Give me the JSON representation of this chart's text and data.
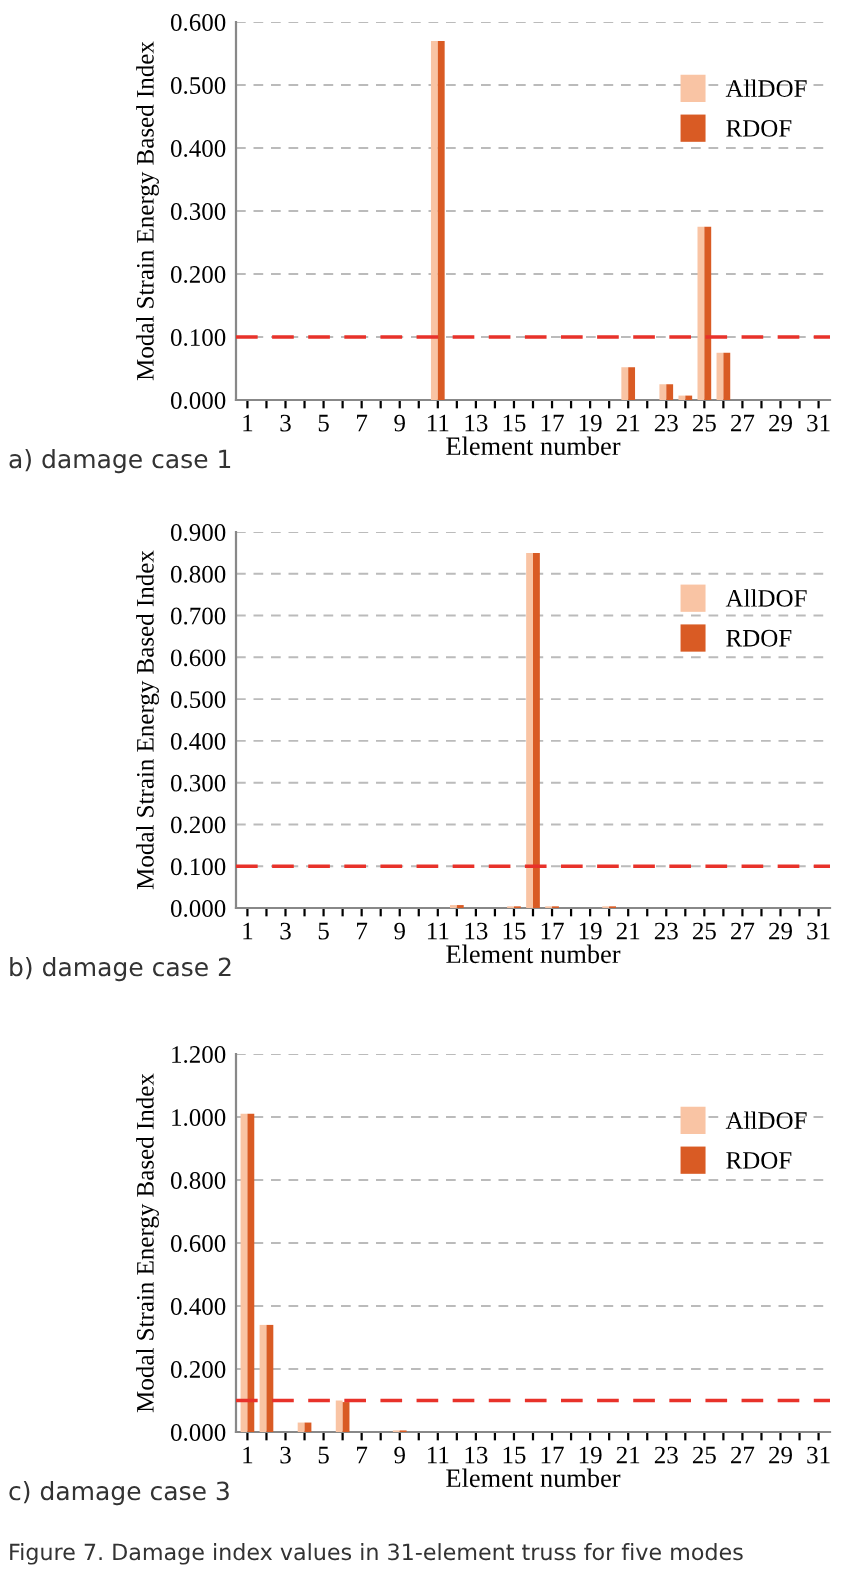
{
  "chart_data": [
    {
      "type": "bar",
      "xlabel": "Element number",
      "ylabel": "Modal Strain Energy Based Index",
      "categories": [
        "1",
        null,
        "3",
        null,
        "5",
        null,
        "7",
        null,
        "9",
        null,
        "11",
        null,
        "13",
        null,
        "15",
        null,
        "17",
        null,
        "19",
        null,
        "21",
        null,
        "23",
        null,
        "25",
        null,
        "27",
        null,
        "29",
        null,
        "31"
      ],
      "series": [
        {
          "name": "AllDOF",
          "color": "#f9c4a4",
          "values": [
            0,
            0,
            0,
            0,
            0,
            0,
            0,
            0,
            0,
            0,
            0.57,
            0,
            0,
            0,
            0,
            0,
            0,
            0,
            0,
            0,
            0.052,
            0,
            0.025,
            0.007,
            0.275,
            0.075,
            0,
            0,
            0,
            0,
            0
          ]
        },
        {
          "name": "RDOF",
          "color": "#d95b24",
          "values": [
            0,
            0,
            0,
            0,
            0,
            0,
            0,
            0,
            0,
            0,
            0.57,
            0,
            0,
            0,
            0,
            0,
            0,
            0,
            0,
            0,
            0.052,
            0,
            0.025,
            0.007,
            0.275,
            0.075,
            0,
            0,
            0,
            0,
            0
          ]
        }
      ],
      "ylim": [
        0,
        0.6
      ],
      "yticks": [
        {
          "value": 0,
          "label": "0.000"
        },
        {
          "value": 0.1,
          "label": "0.100"
        },
        {
          "value": 0.2,
          "label": "0.200"
        },
        {
          "value": 0.3,
          "label": "0.300"
        },
        {
          "value": 0.4,
          "label": "0.400"
        },
        {
          "value": 0.5,
          "label": "0.500"
        },
        {
          "value": 0.6,
          "label": "0.600"
        }
      ],
      "ref_lines": [
        {
          "axis": "y",
          "value": 0.1,
          "color": "#e8322a",
          "line_style": "dashed"
        }
      ],
      "grid": "y",
      "legend": "top right",
      "annotations": [
        "a) damage case 1"
      ]
    },
    {
      "type": "bar",
      "xlabel": "Element number",
      "ylabel": "Modal Strain Energy Based Index",
      "categories": [
        "1",
        null,
        "3",
        null,
        "5",
        null,
        "7",
        null,
        "9",
        null,
        "11",
        null,
        "13",
        null,
        "15",
        null,
        "17",
        null,
        "19",
        null,
        "21",
        null,
        "23",
        null,
        "25",
        null,
        "27",
        null,
        "29",
        null,
        "31"
      ],
      "series": [
        {
          "name": "AllDOF",
          "color": "#f9c4a4",
          "values": [
            0,
            0,
            0,
            0,
            0,
            0,
            0,
            0,
            0,
            0,
            0,
            0.007,
            0,
            0,
            0.004,
            0.85,
            0.004,
            0,
            0,
            0.004,
            0,
            0,
            0,
            0,
            0,
            0,
            0,
            0,
            0,
            0,
            0
          ]
        },
        {
          "name": "RDOF",
          "color": "#d95b24",
          "values": [
            0,
            0,
            0,
            0,
            0,
            0,
            0,
            0,
            0,
            0,
            0,
            0.007,
            0,
            0,
            0.004,
            0.85,
            0.004,
            0,
            0,
            0.004,
            0,
            0,
            0,
            0,
            0,
            0,
            0,
            0,
            0,
            0,
            0
          ]
        }
      ],
      "ylim": [
        0,
        0.9
      ],
      "yticks": [
        {
          "value": 0,
          "label": "0.000"
        },
        {
          "value": 0.1,
          "label": "0.100"
        },
        {
          "value": 0.2,
          "label": "0.200"
        },
        {
          "value": 0.3,
          "label": "0.300"
        },
        {
          "value": 0.4,
          "label": "0.400"
        },
        {
          "value": 0.5,
          "label": "0.500"
        },
        {
          "value": 0.6,
          "label": "0.600"
        },
        {
          "value": 0.7,
          "label": "0.700"
        },
        {
          "value": 0.8,
          "label": "0.800"
        },
        {
          "value": 0.9,
          "label": "0.900"
        }
      ],
      "ref_lines": [
        {
          "axis": "y",
          "value": 0.1,
          "color": "#e8322a",
          "line_style": "dashed"
        }
      ],
      "grid": "y",
      "legend": "top right",
      "annotations": [
        "b) damage case 2"
      ]
    },
    {
      "type": "bar",
      "xlabel": "Element number",
      "ylabel": "Modal Strain Energy Based Index",
      "categories": [
        "1",
        null,
        "3",
        null,
        "5",
        null,
        "7",
        null,
        "9",
        null,
        "11",
        null,
        "13",
        null,
        "15",
        null,
        "17",
        null,
        "19",
        null,
        "21",
        null,
        "23",
        null,
        "25",
        null,
        "27",
        null,
        "29",
        null,
        "31"
      ],
      "series": [
        {
          "name": "AllDOF",
          "color": "#f9c4a4",
          "values": [
            1.01,
            0.34,
            0,
            0.03,
            0,
            0.1,
            0,
            0,
            0.005,
            0,
            0,
            0,
            0,
            0,
            0,
            0,
            0,
            0,
            0,
            0,
            0,
            0,
            0,
            0,
            0,
            0,
            0,
            0,
            0,
            0,
            0
          ]
        },
        {
          "name": "RDOF",
          "color": "#d95b24",
          "values": [
            1.01,
            0.34,
            0,
            0.03,
            0,
            0.095,
            0,
            0,
            0.005,
            0,
            0,
            0,
            0,
            0,
            0,
            0,
            0,
            0,
            0,
            0,
            0,
            0,
            0,
            0,
            0,
            0,
            0,
            0,
            0,
            0,
            0
          ]
        }
      ],
      "ylim": [
        0,
        1.2
      ],
      "yticks": [
        {
          "value": 0,
          "label": "0.000"
        },
        {
          "value": 0.2,
          "label": "0.200"
        },
        {
          "value": 0.4,
          "label": "0.400"
        },
        {
          "value": 0.6,
          "label": "0.600"
        },
        {
          "value": 0.8,
          "label": "0.800"
        },
        {
          "value": 1.0,
          "label": "1.000"
        },
        {
          "value": 1.2,
          "label": "1.200"
        }
      ],
      "ref_lines": [
        {
          "axis": "y",
          "value": 0.1,
          "color": "#e8322a",
          "line_style": "dashed"
        }
      ],
      "grid": "y",
      "legend": "top right",
      "annotations": [
        "c) damage case 3",
        "Figure 7. Damage index values in 31-element truss for five modes"
      ]
    }
  ]
}
